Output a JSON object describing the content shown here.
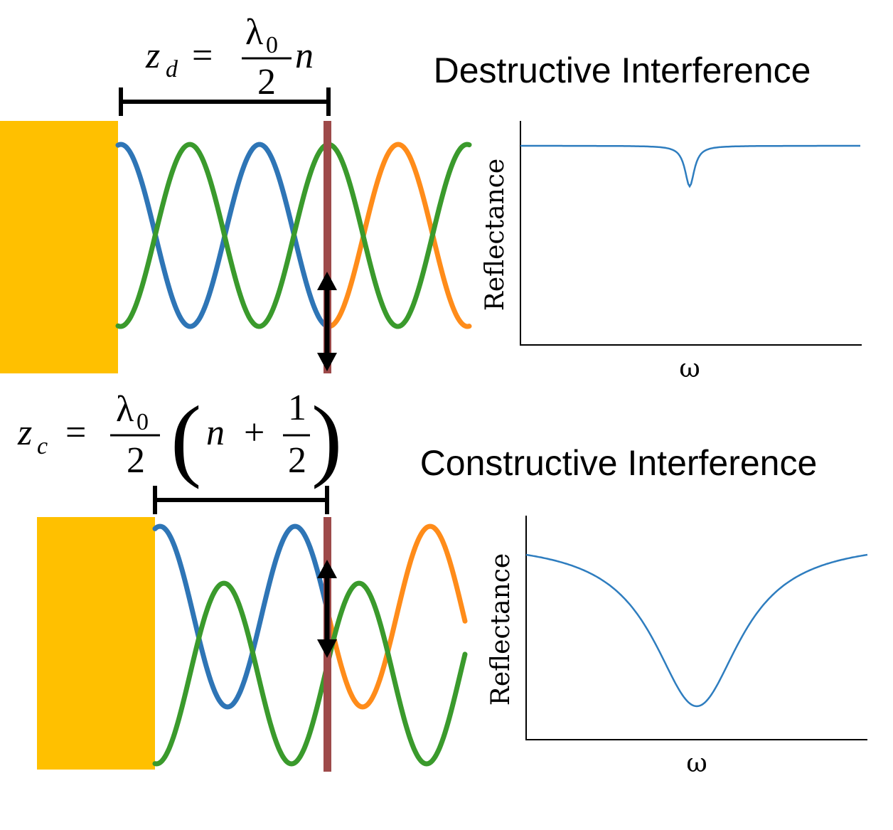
{
  "top_panel": {
    "title": "Destructive Interference",
    "equation": {
      "symbol": "z",
      "subscript": "d",
      "operator": "=",
      "numerator": "λ",
      "numerator_subscript": "0",
      "denominator": "2",
      "factor": "n"
    },
    "plot": {
      "y_label": "Reflectance",
      "x_label": "ω"
    }
  },
  "bottom_panel": {
    "title": "Constructive Interference",
    "equation": {
      "symbol": "z",
      "subscript": "c",
      "operator": "=",
      "numerator": "λ",
      "numerator_subscript": "0",
      "denominator": "2",
      "paren_open": "(",
      "term": "n",
      "plus": "+",
      "half_numerator": "1",
      "half_denominator": "2",
      "paren_close": ")"
    },
    "plot": {
      "y_label": "Reflectance",
      "x_label": "ω"
    }
  }
}
